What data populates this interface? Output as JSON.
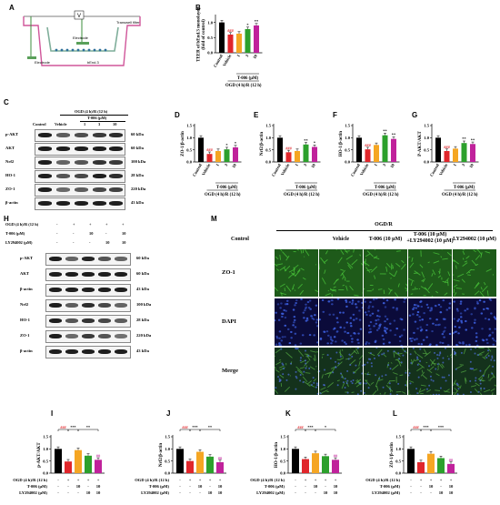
{
  "panel_letters": {
    "a": "A",
    "b": "B",
    "c": "C",
    "d": "D",
    "e": "E",
    "f": "F",
    "g": "G",
    "h": "H",
    "i": "I",
    "j": "J",
    "k": "K",
    "l": "L",
    "m": "M"
  },
  "diagram_a": {
    "top_label": "V",
    "right_label": "Transwell filter",
    "left_label": "Electrode",
    "bottom_label": "bEnd.3",
    "inner_label": "Electrode"
  },
  "blot_c": {
    "condition_title": "OGD (4 h)/R (12 h)",
    "dose_title": "T-006 (μM)",
    "lanes": [
      "Control",
      "Vehicle",
      "1",
      "3",
      "10"
    ],
    "rows": [
      {
        "name": "p-AKT",
        "size": "60 kDa"
      },
      {
        "name": "AKT",
        "size": "60 kDa"
      },
      {
        "name": "Nrf2",
        "size": "100 kDa"
      },
      {
        "name": "HO-1",
        "size": "28 kDa"
      },
      {
        "name": "ZO-1",
        "size": "220 kDa"
      },
      {
        "name": "β-actin",
        "size": "43 kDa"
      }
    ]
  },
  "blot_h": {
    "treat_rows": [
      {
        "label": "OGD (4 h)/R (12 h)",
        "values": [
          "-",
          "+",
          "+",
          "+",
          "+"
        ]
      },
      {
        "label": "T-006 (μM)",
        "values": [
          "-",
          "-",
          "10",
          "-",
          "10"
        ]
      },
      {
        "label": "LY294002 (μM)",
        "values": [
          "-",
          "-",
          "-",
          "10",
          "10"
        ]
      }
    ],
    "rows": [
      {
        "name": "p-AKT",
        "size": "60 kDa"
      },
      {
        "name": "AKT",
        "size": "60 kDa"
      },
      {
        "name": "β-actin",
        "size": "43 kDa"
      },
      {
        "name": "Nrf2",
        "size": "100 kDa"
      },
      {
        "name": "HO-1",
        "size": "28 kDa"
      },
      {
        "name": "ZO-1",
        "size": "220 kDa"
      },
      {
        "name": "β-actin",
        "size": "43 kDa"
      }
    ]
  },
  "micro_m": {
    "group_title": "OGD/R",
    "columns": [
      "Control",
      "Vehicle",
      "T-006 (10 μM)",
      "T-006 (10 μM)\n+LY294002 (10 μM)",
      "LY294002 (10 μM)"
    ],
    "rows": [
      "ZO-1",
      "DAPI",
      "Merge"
    ]
  },
  "chart_data": [
    {
      "panel": "B",
      "type": "bar",
      "ylabel": "TEER of bEnd.3 monolayer\n(fold of control)",
      "ylim": [
        0,
        1.2
      ],
      "yticks": [
        "0.0",
        "0.5",
        "1.0"
      ],
      "categories": [
        "Control",
        "Vehicle",
        "1",
        "3",
        "10"
      ],
      "values": [
        1.0,
        0.6,
        0.63,
        0.78,
        0.9
      ],
      "colors": [
        "#000000",
        "#e0262b",
        "#f5a623",
        "#2ca02c",
        "#c0229b"
      ],
      "sig": [
        "",
        "###",
        "",
        "*",
        "**"
      ],
      "group_label": "T-006 (μM)",
      "condition_label": "OGD (4 h)/R (12 h)"
    },
    {
      "panel": "D",
      "type": "bar",
      "ylabel": "ZO-1/β-actin",
      "ylim": [
        0,
        1.5
      ],
      "yticks": [
        "0.0",
        "0.5",
        "1.0",
        "1.5"
      ],
      "categories": [
        "Control",
        "Vehicle",
        "1",
        "3",
        "10"
      ],
      "values": [
        1.0,
        0.33,
        0.45,
        0.52,
        0.6
      ],
      "colors": [
        "#000000",
        "#e0262b",
        "#f5a623",
        "#2ca02c",
        "#c0229b"
      ],
      "sig": [
        "",
        "###",
        "",
        "*",
        "*"
      ],
      "group_label": "T-006 (μM)",
      "condition_label": "OGD (4 h)/R (12 h)"
    },
    {
      "panel": "E",
      "type": "bar",
      "ylabel": "Nrf2/β-actin",
      "ylim": [
        0,
        1.5
      ],
      "yticks": [
        "0.0",
        "0.5",
        "1.0",
        "1.5"
      ],
      "categories": [
        "Control",
        "Vehicle",
        "1",
        "3",
        "10"
      ],
      "values": [
        1.0,
        0.4,
        0.45,
        0.72,
        0.62
      ],
      "colors": [
        "#000000",
        "#e0262b",
        "#f5a623",
        "#2ca02c",
        "#c0229b"
      ],
      "sig": [
        "",
        "###",
        "",
        "**",
        "*"
      ],
      "group_label": "T-006 (μM)",
      "condition_label": "OGD (4 h)/R (12 h)"
    },
    {
      "panel": "F",
      "type": "bar",
      "ylabel": "HO-1/β-actin",
      "ylim": [
        0,
        1.5
      ],
      "yticks": [
        "0.0",
        "0.5",
        "1.0",
        "1.5"
      ],
      "categories": [
        "Control",
        "Vehicle",
        "1",
        "3",
        "10"
      ],
      "values": [
        1.0,
        0.52,
        0.7,
        1.1,
        0.95
      ],
      "colors": [
        "#000000",
        "#e0262b",
        "#f5a623",
        "#2ca02c",
        "#c0229b"
      ],
      "sig": [
        "",
        "###",
        "",
        "**",
        "**"
      ],
      "group_label": "T-006 (μM)",
      "condition_label": "OGD (4 h)/R (12 h)"
    },
    {
      "panel": "G",
      "type": "bar",
      "ylabel": "P-AKT/AKT",
      "ylim": [
        0,
        1.5
      ],
      "yticks": [
        "0.0",
        "0.5",
        "1.0",
        "1.5"
      ],
      "categories": [
        "Control",
        "Vehicle",
        "1",
        "3",
        "10"
      ],
      "values": [
        1.0,
        0.45,
        0.55,
        0.78,
        0.74
      ],
      "colors": [
        "#000000",
        "#e0262b",
        "#f5a623",
        "#2ca02c",
        "#c0229b"
      ],
      "sig": [
        "",
        "###",
        "",
        "**",
        "**"
      ],
      "group_label": "T-006 (μM)",
      "condition_label": "OGD (4 h)/R (12 h)"
    },
    {
      "panel": "I",
      "type": "bar",
      "ylabel": "p-AKT/AKT",
      "ylim": [
        0,
        1.5
      ],
      "yticks": [
        "0.0",
        "0.5",
        "1.0",
        "1.5"
      ],
      "values": [
        1.0,
        0.48,
        0.95,
        0.72,
        0.55
      ],
      "colors": [
        "#000000",
        "#e0262b",
        "#f5a623",
        "#2ca02c",
        "#c0229b"
      ],
      "sig_last": "##",
      "brackets": [
        "###",
        "***",
        "**"
      ],
      "treat_rows": [
        {
          "label": "OGD (4 h)/R (12 h)",
          "values": [
            "-",
            "+",
            "+",
            "+",
            "+"
          ]
        },
        {
          "label": "T-006 (μM)",
          "values": [
            "-",
            "-",
            "10",
            "-",
            "10"
          ]
        },
        {
          "label": "LY294002 (μM)",
          "values": [
            "-",
            "-",
            "-",
            "10",
            "10"
          ]
        }
      ]
    },
    {
      "panel": "J",
      "type": "bar",
      "ylabel": "Nrf2/β-actin",
      "ylim": [
        0,
        1.5
      ],
      "yticks": [
        "0.0",
        "0.5",
        "1.0",
        "1.5"
      ],
      "values": [
        1.0,
        0.5,
        0.88,
        0.68,
        0.45
      ],
      "colors": [
        "#000000",
        "#e0262b",
        "#f5a623",
        "#2ca02c",
        "#c0229b"
      ],
      "sig_last": "##",
      "brackets": [
        "###",
        "***",
        "**"
      ],
      "treat_rows": [
        {
          "label": "OGD (4 h)/R (12 h)",
          "values": [
            "-",
            "+",
            "+",
            "+",
            "+"
          ]
        },
        {
          "label": "T-006 (μM)",
          "values": [
            "-",
            "-",
            "10",
            "-",
            "10"
          ]
        },
        {
          "label": "LY294002 (μM)",
          "values": [
            "-",
            "-",
            "-",
            "10",
            "10"
          ]
        }
      ]
    },
    {
      "panel": "K",
      "type": "bar",
      "ylabel": "HO-1/β-actin",
      "ylim": [
        0,
        1.5
      ],
      "yticks": [
        "0.0",
        "0.5",
        "1.0",
        "1.5"
      ],
      "values": [
        1.0,
        0.58,
        0.82,
        0.7,
        0.55
      ],
      "colors": [
        "#000000",
        "#e0262b",
        "#f5a623",
        "#2ca02c",
        "#c0229b"
      ],
      "sig_last": "##",
      "brackets": [
        "###",
        "***",
        "*"
      ],
      "treat_rows": [
        {
          "label": "OGD (4 h)/R (12 h)",
          "values": [
            "-",
            "+",
            "+",
            "+",
            "+"
          ]
        },
        {
          "label": "T-006 (μM)",
          "values": [
            "-",
            "-",
            "10",
            "-",
            "10"
          ]
        },
        {
          "label": "LY294002 (μM)",
          "values": [
            "-",
            "-",
            "-",
            "10",
            "10"
          ]
        }
      ]
    },
    {
      "panel": "L",
      "type": "bar",
      "ylabel": "ZO-1/β-actin",
      "ylim": [
        0,
        1.5
      ],
      "yticks": [
        "0.0",
        "0.5",
        "1.0",
        "1.5"
      ],
      "values": [
        1.0,
        0.45,
        0.8,
        0.62,
        0.38
      ],
      "colors": [
        "#000000",
        "#e0262b",
        "#f5a623",
        "#2ca02c",
        "#c0229b"
      ],
      "sig_last": "##",
      "brackets": [
        "###",
        "***",
        "***"
      ],
      "treat_rows": [
        {
          "label": "OGD (4 h)/R (12 h)",
          "values": [
            "-",
            "+",
            "+",
            "+",
            "+"
          ]
        },
        {
          "label": "T-006 (μM)",
          "values": [
            "-",
            "-",
            "10",
            "-",
            "10"
          ]
        },
        {
          "label": "LY294002 (μM)",
          "values": [
            "-",
            "-",
            "-",
            "10",
            "10"
          ]
        }
      ]
    }
  ]
}
